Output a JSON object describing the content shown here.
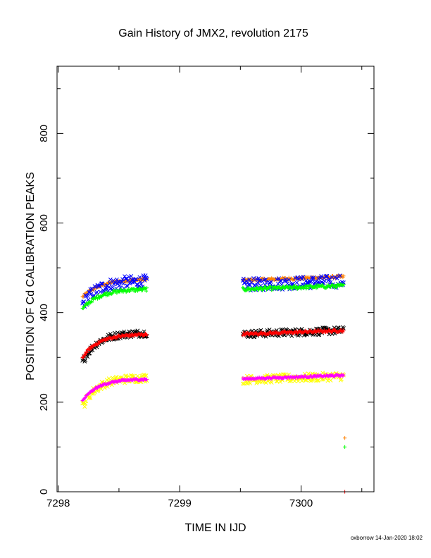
{
  "chart_data": {
    "type": "scatter",
    "title": "Gain History of JMX2, revolution 2175",
    "xlabel": "TIME IN IJD",
    "ylabel": "POSITION OF Cd CALIBRATION PEAKS",
    "xlim": [
      7297.99,
      7300.6
    ],
    "ylim": [
      0,
      950
    ],
    "x_ticks": [
      7298,
      7299,
      7300
    ],
    "y_ticks": [
      0,
      200,
      400,
      600,
      800
    ],
    "grid": false,
    "legend": "none",
    "segments": [
      [
        7298.2,
        7298.73
      ],
      [
        7299.52,
        7300.35
      ]
    ],
    "series": [
      {
        "color": "#ff8000",
        "marker": "plus",
        "start": 435,
        "plateau1": 475,
        "plateau2": 480,
        "rise": 0.15,
        "scatter": 3,
        "end": 480
      },
      {
        "color": "#0000ff",
        "marker": "cross",
        "start": 418,
        "plateau1": 470,
        "plateau2": 470,
        "rise": 0.12,
        "scatter": 14,
        "end": 468
      },
      {
        "color": "#00ff00",
        "marker": "plus",
        "start": 408,
        "plateau1": 453,
        "plateau2": 460,
        "rise": 0.14,
        "scatter": 4,
        "end": 460
      },
      {
        "color": "#000000",
        "marker": "cross",
        "start": 290,
        "plateau1": 355,
        "plateau2": 360,
        "rise": 0.12,
        "scatter": 8,
        "end": 360
      },
      {
        "color": "#ff0000",
        "marker": "plus",
        "start": 300,
        "plateau1": 352,
        "plateau2": 360,
        "rise": 0.13,
        "scatter": 3,
        "end": 360
      },
      {
        "color": "#ffff00",
        "marker": "cross",
        "start": 190,
        "plateau1": 255,
        "plateau2": 258,
        "rise": 0.12,
        "scatter": 9,
        "end": 260
      },
      {
        "color": "#ff00ff",
        "marker": "plus",
        "start": 203,
        "plateau1": 252,
        "plateau2": 260,
        "rise": 0.13,
        "scatter": 2,
        "end": 260
      }
    ],
    "isolated_points": [
      {
        "x": 7300.36,
        "y": 120,
        "color": "#ff8000",
        "marker": "plus"
      },
      {
        "x": 7300.36,
        "y": 100,
        "color": "#00ff00",
        "marker": "plus"
      },
      {
        "x": 7300.36,
        "y": 0,
        "color": "#ff0000",
        "marker": "plus"
      }
    ]
  },
  "footer": "oxborrow 14-Jan-2020 18:02"
}
